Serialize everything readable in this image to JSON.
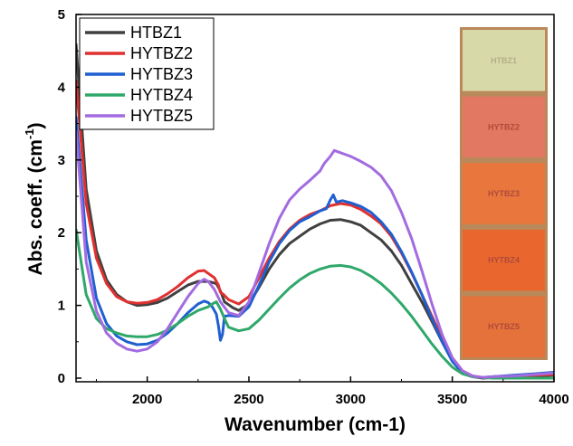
{
  "chart_data": {
    "type": "line",
    "title": "",
    "xlabel": "Wavenumber (cm-1)",
    "ylabel": "Abs. coeff. (cm",
    "ylabel_sup": "-1",
    "ylabel_close": ")",
    "xlim": [
      1650,
      4000
    ],
    "ylim": [
      -0.05,
      5
    ],
    "x_ticks": [
      2000,
      2500,
      3000,
      3500,
      4000
    ],
    "y_ticks": [
      0,
      1,
      2,
      3,
      4,
      5
    ],
    "legend_position": "top-left",
    "grid": false,
    "series": [
      {
        "name": "HTBZ1",
        "color": "#404040",
        "points": [
          [
            1650,
            4.6
          ],
          [
            1700,
            2.6
          ],
          [
            1750,
            1.75
          ],
          [
            1800,
            1.35
          ],
          [
            1850,
            1.15
          ],
          [
            1900,
            1.05
          ],
          [
            1950,
            1.0
          ],
          [
            2000,
            1.01
          ],
          [
            2050,
            1.04
          ],
          [
            2100,
            1.1
          ],
          [
            2150,
            1.19
          ],
          [
            2200,
            1.28
          ],
          [
            2250,
            1.33
          ],
          [
            2300,
            1.33
          ],
          [
            2340,
            1.3
          ],
          [
            2360,
            1.2
          ],
          [
            2380,
            1.05
          ],
          [
            2420,
            0.97
          ],
          [
            2450,
            0.93
          ],
          [
            2500,
            1.02
          ],
          [
            2550,
            1.25
          ],
          [
            2600,
            1.5
          ],
          [
            2650,
            1.7
          ],
          [
            2700,
            1.85
          ],
          [
            2750,
            1.95
          ],
          [
            2800,
            2.05
          ],
          [
            2850,
            2.12
          ],
          [
            2900,
            2.17
          ],
          [
            2950,
            2.18
          ],
          [
            3000,
            2.15
          ],
          [
            3050,
            2.1
          ],
          [
            3100,
            2.0
          ],
          [
            3150,
            1.9
          ],
          [
            3200,
            1.75
          ],
          [
            3250,
            1.55
          ],
          [
            3300,
            1.3
          ],
          [
            3350,
            1.05
          ],
          [
            3400,
            0.78
          ],
          [
            3450,
            0.5
          ],
          [
            3500,
            0.25
          ],
          [
            3550,
            0.08
          ],
          [
            3600,
            0.02
          ],
          [
            3650,
            0.0
          ],
          [
            3700,
            0.01
          ],
          [
            3800,
            0.02
          ],
          [
            3900,
            0.03
          ],
          [
            4000,
            0.04
          ]
        ]
      },
      {
        "name": "HYTBZ2",
        "color": "#e03030",
        "points": [
          [
            1650,
            4.1
          ],
          [
            1700,
            2.4
          ],
          [
            1750,
            1.65
          ],
          [
            1800,
            1.3
          ],
          [
            1850,
            1.12
          ],
          [
            1900,
            1.05
          ],
          [
            1950,
            1.03
          ],
          [
            2000,
            1.04
          ],
          [
            2050,
            1.08
          ],
          [
            2100,
            1.16
          ],
          [
            2150,
            1.26
          ],
          [
            2200,
            1.38
          ],
          [
            2250,
            1.47
          ],
          [
            2280,
            1.48
          ],
          [
            2300,
            1.44
          ],
          [
            2330,
            1.38
          ],
          [
            2350,
            1.28
          ],
          [
            2360,
            1.18
          ],
          [
            2375,
            1.15
          ],
          [
            2400,
            1.08
          ],
          [
            2450,
            1.02
          ],
          [
            2500,
            1.12
          ],
          [
            2550,
            1.38
          ],
          [
            2600,
            1.65
          ],
          [
            2650,
            1.88
          ],
          [
            2700,
            2.05
          ],
          [
            2750,
            2.17
          ],
          [
            2800,
            2.25
          ],
          [
            2850,
            2.3
          ],
          [
            2900,
            2.37
          ],
          [
            2950,
            2.4
          ],
          [
            3000,
            2.38
          ],
          [
            3050,
            2.32
          ],
          [
            3100,
            2.23
          ],
          [
            3150,
            2.12
          ],
          [
            3200,
            1.95
          ],
          [
            3250,
            1.72
          ],
          [
            3300,
            1.45
          ],
          [
            3350,
            1.15
          ],
          [
            3400,
            0.85
          ],
          [
            3450,
            0.55
          ],
          [
            3500,
            0.28
          ],
          [
            3550,
            0.1
          ],
          [
            3600,
            0.03
          ],
          [
            3650,
            0.01
          ],
          [
            3700,
            0.02
          ],
          [
            3800,
            0.03
          ],
          [
            3900,
            0.04
          ],
          [
            4000,
            0.05
          ]
        ]
      },
      {
        "name": "HYTBZ3",
        "color": "#1f5fd0",
        "points": [
          [
            1650,
            3.6
          ],
          [
            1700,
            1.9
          ],
          [
            1750,
            1.1
          ],
          [
            1800,
            0.75
          ],
          [
            1850,
            0.58
          ],
          [
            1900,
            0.5
          ],
          [
            1950,
            0.46
          ],
          [
            2000,
            0.47
          ],
          [
            2050,
            0.52
          ],
          [
            2100,
            0.62
          ],
          [
            2150,
            0.75
          ],
          [
            2200,
            0.9
          ],
          [
            2250,
            1.02
          ],
          [
            2280,
            1.06
          ],
          [
            2300,
            1.04
          ],
          [
            2320,
            0.98
          ],
          [
            2340,
            0.88
          ],
          [
            2350,
            0.72
          ],
          [
            2360,
            0.52
          ],
          [
            2370,
            0.6
          ],
          [
            2380,
            0.85
          ],
          [
            2400,
            0.86
          ],
          [
            2450,
            0.85
          ],
          [
            2500,
            0.98
          ],
          [
            2550,
            1.28
          ],
          [
            2600,
            1.6
          ],
          [
            2650,
            1.85
          ],
          [
            2700,
            2.03
          ],
          [
            2750,
            2.15
          ],
          [
            2800,
            2.22
          ],
          [
            2850,
            2.3
          ],
          [
            2880,
            2.33
          ],
          [
            2900,
            2.45
          ],
          [
            2915,
            2.52
          ],
          [
            2930,
            2.42
          ],
          [
            2960,
            2.44
          ],
          [
            3000,
            2.41
          ],
          [
            3050,
            2.36
          ],
          [
            3100,
            2.28
          ],
          [
            3150,
            2.15
          ],
          [
            3200,
            1.98
          ],
          [
            3250,
            1.74
          ],
          [
            3300,
            1.46
          ],
          [
            3350,
            1.15
          ],
          [
            3400,
            0.82
          ],
          [
            3450,
            0.5
          ],
          [
            3500,
            0.23
          ],
          [
            3550,
            0.07
          ],
          [
            3600,
            0.02
          ],
          [
            3650,
            0.01
          ],
          [
            3700,
            0.02
          ],
          [
            3800,
            0.04
          ],
          [
            3900,
            0.06
          ],
          [
            4000,
            0.08
          ]
        ]
      },
      {
        "name": "HYTBZ4",
        "color": "#2fa86a",
        "points": [
          [
            1650,
            2.05
          ],
          [
            1700,
            1.15
          ],
          [
            1750,
            0.82
          ],
          [
            1800,
            0.68
          ],
          [
            1850,
            0.62
          ],
          [
            1900,
            0.58
          ],
          [
            1950,
            0.57
          ],
          [
            2000,
            0.57
          ],
          [
            2050,
            0.6
          ],
          [
            2100,
            0.66
          ],
          [
            2150,
            0.75
          ],
          [
            2200,
            0.85
          ],
          [
            2250,
            0.93
          ],
          [
            2280,
            0.96
          ],
          [
            2300,
            0.98
          ],
          [
            2320,
            1.02
          ],
          [
            2340,
            1.05
          ],
          [
            2360,
            0.95
          ],
          [
            2380,
            0.82
          ],
          [
            2400,
            0.7
          ],
          [
            2450,
            0.65
          ],
          [
            2500,
            0.68
          ],
          [
            2550,
            0.8
          ],
          [
            2600,
            0.95
          ],
          [
            2650,
            1.1
          ],
          [
            2700,
            1.24
          ],
          [
            2750,
            1.35
          ],
          [
            2800,
            1.44
          ],
          [
            2850,
            1.5
          ],
          [
            2900,
            1.54
          ],
          [
            2950,
            1.55
          ],
          [
            3000,
            1.53
          ],
          [
            3050,
            1.48
          ],
          [
            3100,
            1.4
          ],
          [
            3150,
            1.3
          ],
          [
            3200,
            1.17
          ],
          [
            3250,
            1.02
          ],
          [
            3300,
            0.85
          ],
          [
            3350,
            0.66
          ],
          [
            3400,
            0.47
          ],
          [
            3450,
            0.3
          ],
          [
            3500,
            0.15
          ],
          [
            3550,
            0.06
          ],
          [
            3600,
            0.02
          ],
          [
            3650,
            0.01
          ],
          [
            3700,
            0.0
          ],
          [
            3800,
            0.0
          ],
          [
            3900,
            0.0
          ],
          [
            4000,
            0.0
          ]
        ]
      },
      {
        "name": "HYTBZ5",
        "color": "#a36be0",
        "points": [
          [
            1650,
            3.4
          ],
          [
            1700,
            1.6
          ],
          [
            1750,
            0.92
          ],
          [
            1800,
            0.62
          ],
          [
            1850,
            0.48
          ],
          [
            1900,
            0.4
          ],
          [
            1950,
            0.37
          ],
          [
            2000,
            0.4
          ],
          [
            2050,
            0.5
          ],
          [
            2100,
            0.68
          ],
          [
            2150,
            0.9
          ],
          [
            2200,
            1.12
          ],
          [
            2250,
            1.3
          ],
          [
            2280,
            1.36
          ],
          [
            2300,
            1.33
          ],
          [
            2330,
            1.22
          ],
          [
            2360,
            1.05
          ],
          [
            2400,
            0.9
          ],
          [
            2450,
            0.86
          ],
          [
            2500,
            1.05
          ],
          [
            2550,
            1.45
          ],
          [
            2600,
            1.85
          ],
          [
            2650,
            2.2
          ],
          [
            2700,
            2.45
          ],
          [
            2750,
            2.6
          ],
          [
            2800,
            2.72
          ],
          [
            2850,
            2.85
          ],
          [
            2870,
            2.95
          ],
          [
            2900,
            3.05
          ],
          [
            2920,
            3.13
          ],
          [
            2950,
            3.1
          ],
          [
            3000,
            3.05
          ],
          [
            3050,
            2.98
          ],
          [
            3100,
            2.9
          ],
          [
            3150,
            2.78
          ],
          [
            3200,
            2.58
          ],
          [
            3250,
            2.28
          ],
          [
            3300,
            1.92
          ],
          [
            3350,
            1.48
          ],
          [
            3400,
            1.02
          ],
          [
            3450,
            0.6
          ],
          [
            3500,
            0.28
          ],
          [
            3550,
            0.1
          ],
          [
            3600,
            0.03
          ],
          [
            3650,
            0.01
          ],
          [
            3700,
            0.02
          ],
          [
            3800,
            0.03
          ],
          [
            3900,
            0.05
          ],
          [
            4000,
            0.07
          ]
        ]
      }
    ]
  },
  "inset": {
    "samples": [
      {
        "label": "HTBZ1",
        "color": "#d8d9a9"
      },
      {
        "label": "HYTBZ2",
        "color": "#e27861"
      },
      {
        "label": "HYTBZ3",
        "color": "#e8763d"
      },
      {
        "label": "HYTBZ4",
        "color": "#e9672f"
      },
      {
        "label": "HYTBZ5",
        "color": "#e5713b"
      }
    ]
  }
}
